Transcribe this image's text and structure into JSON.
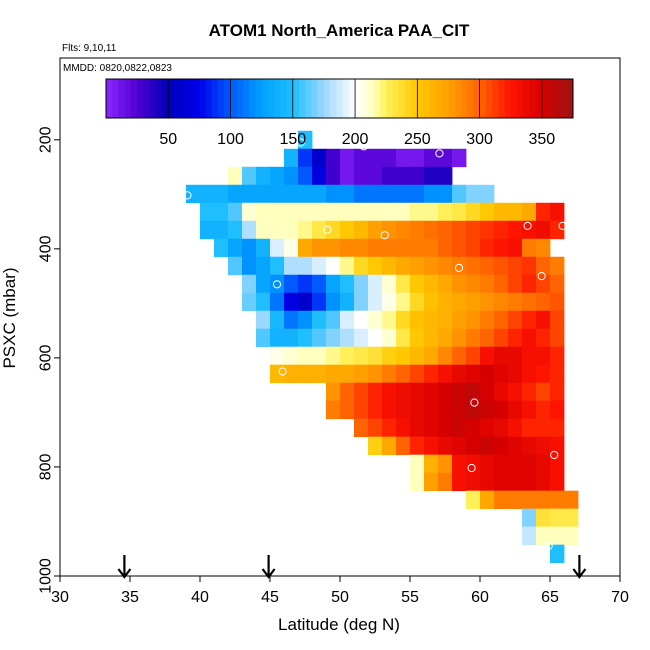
{
  "chart_data": {
    "type": "heatmap",
    "title": "ATOM1 North_America PAA_CIT",
    "flights_label": "Flts: 9,10,11",
    "dates_label": "MMDD: 0820,0822,0823",
    "xlabel": "Latitude (deg N)",
    "ylabel": "PSXC (mbar)",
    "xlim": [
      30,
      70
    ],
    "ylim": [
      1000,
      50
    ],
    "x_ticks": [
      30,
      35,
      40,
      45,
      50,
      55,
      60,
      65,
      70
    ],
    "y_ticks": [
      200,
      400,
      600,
      800,
      1000
    ],
    "colorbar": {
      "range": [
        0,
        375
      ],
      "ticks": [
        50,
        100,
        150,
        200,
        250,
        300,
        350
      ]
    },
    "cell_width_deg": 1,
    "cell_height_mbar": 33,
    "row_centers_mbar": [
      200,
      233,
      266,
      299,
      332,
      365,
      398,
      431,
      464,
      497,
      530,
      563,
      596,
      629,
      662,
      695,
      728,
      761,
      794,
      827,
      860,
      893,
      926,
      959
    ],
    "rows": [
      {
        "x0": 47,
        "values": [
          150
        ]
      },
      {
        "x0": 46,
        "values": [
          140,
          90,
          60,
          30,
          10,
          20,
          20,
          20,
          10,
          10,
          20,
          20,
          10
        ]
      },
      {
        "x0": 42,
        "values": [
          215,
          160,
          140,
          130,
          120,
          100,
          70,
          30,
          10,
          20,
          20,
          30,
          30,
          30,
          40,
          40
        ]
      },
      {
        "x0": 39,
        "values": [
          140,
          140,
          140,
          130,
          130,
          130,
          130,
          130,
          130,
          130,
          120,
          120,
          110,
          110,
          110,
          110,
          110,
          120,
          120,
          160,
          170,
          170
        ]
      },
      {
        "x0": 40,
        "values": [
          150,
          150,
          160,
          210,
          215,
          215,
          215,
          215,
          215,
          215,
          215,
          215,
          215,
          215,
          215,
          220,
          220,
          225,
          230,
          240,
          250,
          260,
          260,
          270,
          320,
          330
        ]
      },
      {
        "x0": 40,
        "values": [
          140,
          140,
          150,
          180,
          215,
          215,
          215,
          220,
          230,
          240,
          250,
          260,
          275,
          280,
          285,
          290,
          295,
          300,
          305,
          310,
          315,
          320,
          325,
          330,
          335,
          320
        ]
      },
      {
        "x0": 41,
        "values": [
          150,
          130,
          120,
          140,
          190,
          205,
          270,
          280,
          280,
          285,
          285,
          290,
          290,
          290,
          290,
          290,
          300,
          305,
          310,
          320,
          325,
          330,
          290,
          285
        ]
      },
      {
        "x0": 42,
        "values": [
          160,
          120,
          130,
          150,
          180,
          180,
          190,
          200,
          220,
          240,
          250,
          260,
          270,
          275,
          280,
          285,
          290,
          295,
          300,
          305,
          310,
          315,
          300,
          290
        ]
      },
      {
        "x0": 43,
        "values": [
          170,
          130,
          120,
          100,
          90,
          100,
          130,
          150,
          170,
          190,
          210,
          230,
          250,
          260,
          270,
          280,
          285,
          290,
          300,
          310,
          320,
          310,
          300
        ]
      },
      {
        "x0": 43,
        "values": [
          165,
          150,
          110,
          70,
          60,
          90,
          120,
          140,
          170,
          190,
          205,
          220,
          240,
          255,
          265,
          270,
          275,
          280,
          285,
          290,
          295,
          300,
          305
        ]
      },
      {
        "x0": 44,
        "values": [
          175,
          145,
          110,
          120,
          150,
          160,
          190,
          200,
          210,
          220,
          240,
          255,
          260,
          265,
          275,
          280,
          290,
          300,
          310,
          320,
          330,
          310
        ]
      },
      {
        "x0": 44,
        "values": [
          160,
          140,
          140,
          150,
          160,
          170,
          180,
          190,
          200,
          210,
          230,
          250,
          260,
          270,
          280,
          290,
          300,
          310,
          320,
          330,
          320,
          310
        ]
      },
      {
        "x0": 45,
        "values": [
          205,
          210,
          215,
          215,
          220,
          225,
          230,
          235,
          245,
          250,
          260,
          270,
          285,
          300,
          310,
          330,
          340,
          340,
          330,
          330,
          320
        ]
      },
      {
        "x0": 45,
        "values": [
          260,
          265,
          265,
          265,
          270,
          270,
          275,
          280,
          290,
          300,
          310,
          320,
          330,
          340,
          345,
          350,
          345,
          340,
          330,
          325,
          320
        ]
      },
      {
        "x0": 49,
        "values": [
          280,
          300,
          310,
          320,
          330,
          335,
          340,
          345,
          350,
          355,
          360,
          350,
          340,
          330,
          320,
          310,
          320
        ]
      },
      {
        "x0": 49,
        "values": [
          290,
          300,
          310,
          320,
          330,
          335,
          340,
          345,
          350,
          355,
          360,
          355,
          350,
          340,
          330,
          320,
          325
        ]
      },
      {
        "x0": 51,
        "values": [
          300,
          310,
          320,
          330,
          340,
          345,
          350,
          355,
          350,
          345,
          340,
          330,
          320,
          320,
          320
        ]
      },
      {
        "x0": 52,
        "values": [
          245,
          270,
          300,
          320,
          330,
          340,
          345,
          350,
          355,
          350,
          345,
          340,
          335,
          330
        ]
      },
      {
        "x0": 55,
        "values": [
          215,
          265,
          280,
          330,
          335,
          340,
          345,
          345,
          345,
          340,
          330
        ]
      },
      {
        "x0": 55,
        "values": [
          215,
          275,
          290,
          330,
          335,
          340,
          345,
          345,
          345,
          340,
          330
        ]
      },
      {
        "x0": 59,
        "values": [
          225,
          270,
          290,
          290,
          290,
          290,
          290,
          290
        ]
      },
      {
        "x0": 63,
        "values": [
          170,
          235,
          230,
          230
        ]
      },
      {
        "x0": 63,
        "values": [
          185,
          215,
          215,
          215
        ]
      },
      {
        "x0": 65,
        "values": [
          150
        ]
      }
    ],
    "markers": [
      {
        "lat": 47.2,
        "p": 205
      },
      {
        "lat": 51.7,
        "p": 212
      },
      {
        "lat": 57.1,
        "p": 225
      },
      {
        "lat": 39.1,
        "p": 302
      },
      {
        "lat": 49.1,
        "p": 365
      },
      {
        "lat": 53.2,
        "p": 375
      },
      {
        "lat": 63.4,
        "p": 358
      },
      {
        "lat": 65.9,
        "p": 358
      },
      {
        "lat": 58.5,
        "p": 435
      },
      {
        "lat": 64.4,
        "p": 450
      },
      {
        "lat": 45.5,
        "p": 465
      },
      {
        "lat": 45.9,
        "p": 625
      },
      {
        "lat": 59.6,
        "p": 682
      },
      {
        "lat": 65.3,
        "p": 778
      },
      {
        "lat": 59.4,
        "p": 802
      },
      {
        "lat": 64.9,
        "p": 945
      }
    ],
    "arrows_lat": [
      34.6,
      44.9,
      67.1
    ]
  }
}
